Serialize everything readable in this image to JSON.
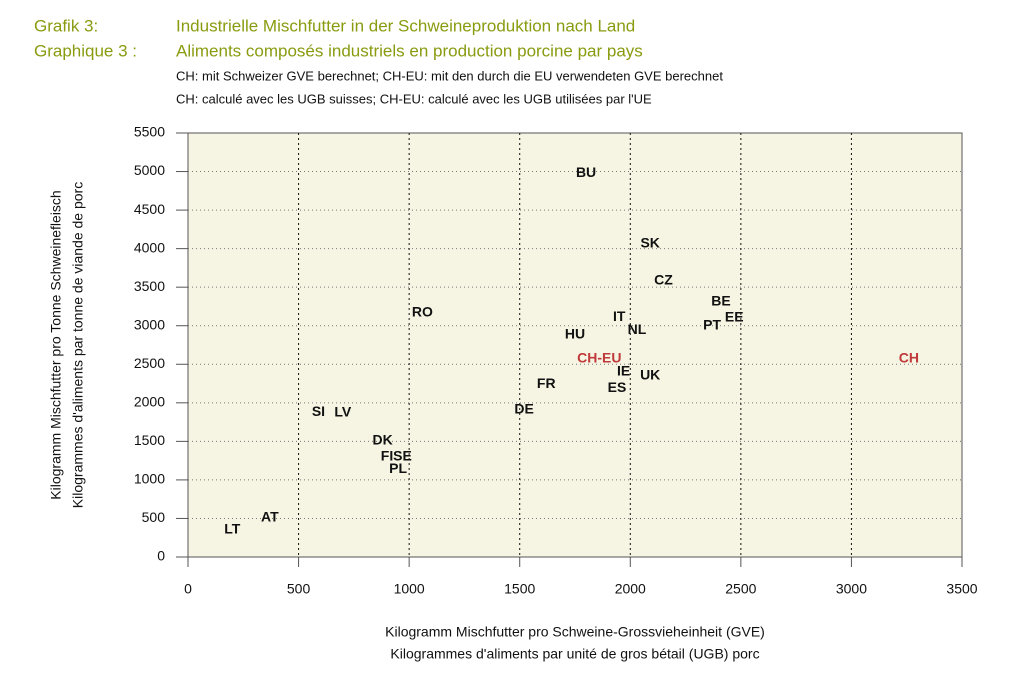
{
  "chart_data": {
    "type": "scatter",
    "title": {
      "de": {
        "number": "Grafik 3:",
        "text": "Industrielle Mischfutter in der Schweineproduktion nach Land"
      },
      "fr": {
        "number": "Graphique 3 :",
        "text": "Aliments composés industriels en production porcine par pays"
      }
    },
    "subtitle": [
      "CH: mit Schweizer GVE berechnet; CH-EU: mit den durch die EU verwendeten GVE berechnet",
      "CH: calculé avec les UGB suisses; CH-EU: calculé avec les UGB utilisées par l'UE"
    ],
    "xlabel": [
      "Kilogramm Mischfutter pro Schweine-Grossvieheinheit (GVE)",
      "Kilogrammes d'aliments par unité de gros bétail (UGB) porc"
    ],
    "ylabel": [
      "Kilogramm Mischfutter pro Tonne Schweinefleisch",
      "Kilogrammes d'aliments par tonne de viande de porc"
    ],
    "xlim": [
      0,
      3500
    ],
    "ylim": [
      0,
      5500
    ],
    "xticks": [
      0,
      500,
      1000,
      1500,
      2000,
      2500,
      3000,
      3500
    ],
    "yticks": [
      0,
      500,
      1000,
      1500,
      2000,
      2500,
      3000,
      3500,
      4000,
      4500,
      5000,
      5500
    ],
    "grid": true,
    "points": [
      {
        "label": "BU",
        "x": 1800,
        "y": 4980,
        "color": "#111111"
      },
      {
        "label": "SK",
        "x": 2090,
        "y": 4060,
        "color": "#111111"
      },
      {
        "label": "CZ",
        "x": 2150,
        "y": 3580,
        "color": "#111111"
      },
      {
        "label": "BE",
        "x": 2410,
        "y": 3310,
        "color": "#111111"
      },
      {
        "label": "EE",
        "x": 2470,
        "y": 3100,
        "color": "#111111"
      },
      {
        "label": "PT",
        "x": 2370,
        "y": 3000,
        "color": "#111111"
      },
      {
        "label": "IT",
        "x": 1950,
        "y": 3110,
        "color": "#111111"
      },
      {
        "label": "NL",
        "x": 2030,
        "y": 2940,
        "color": "#111111"
      },
      {
        "label": "HU",
        "x": 1750,
        "y": 2880,
        "color": "#111111"
      },
      {
        "label": "RO",
        "x": 1060,
        "y": 3170,
        "color": "#111111"
      },
      {
        "label": "CH-EU",
        "x": 1860,
        "y": 2570,
        "color": "#c0393b"
      },
      {
        "label": "CH",
        "x": 3260,
        "y": 2570,
        "color": "#c0393b"
      },
      {
        "label": "IE",
        "x": 1970,
        "y": 2400,
        "color": "#111111"
      },
      {
        "label": "UK",
        "x": 2090,
        "y": 2350,
        "color": "#111111"
      },
      {
        "label": "ES",
        "x": 1940,
        "y": 2190,
        "color": "#111111"
      },
      {
        "label": "FR",
        "x": 1620,
        "y": 2240,
        "color": "#111111"
      },
      {
        "label": "DE",
        "x": 1520,
        "y": 1910,
        "color": "#111111"
      },
      {
        "label": "SI",
        "x": 590,
        "y": 1880,
        "color": "#111111"
      },
      {
        "label": "LV",
        "x": 700,
        "y": 1870,
        "color": "#111111"
      },
      {
        "label": "DK",
        "x": 880,
        "y": 1510,
        "color": "#111111"
      },
      {
        "label": "FI",
        "x": 900,
        "y": 1300,
        "color": "#111111"
      },
      {
        "label": "SE",
        "x": 970,
        "y": 1300,
        "color": "#111111"
      },
      {
        "label": "PL",
        "x": 950,
        "y": 1140,
        "color": "#111111"
      },
      {
        "label": "AT",
        "x": 370,
        "y": 510,
        "color": "#111111"
      },
      {
        "label": "LT",
        "x": 200,
        "y": 350,
        "color": "#111111"
      }
    ]
  }
}
